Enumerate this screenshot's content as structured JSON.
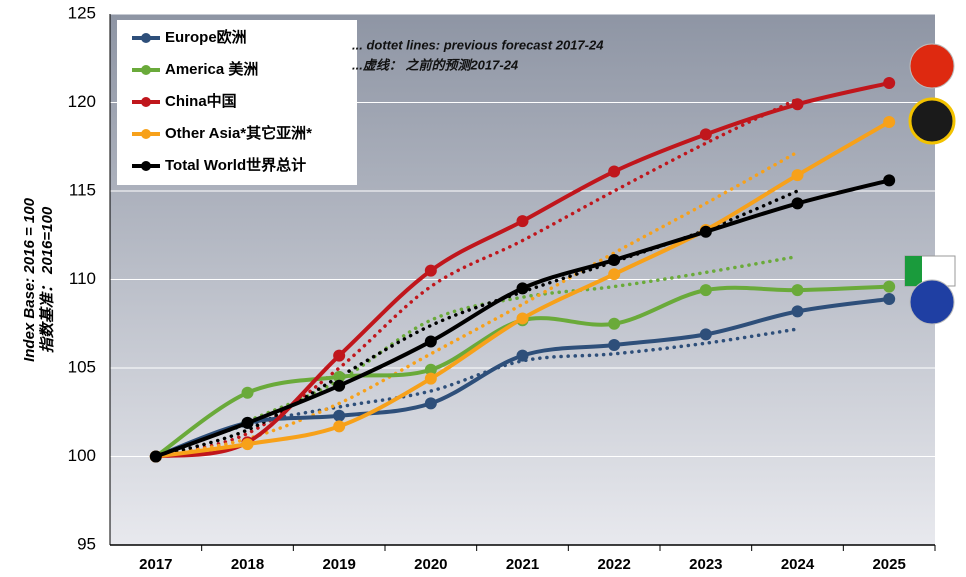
{
  "chart_data": {
    "type": "line",
    "y_label": [
      "Index Base: 2016 = 100",
      "指数基准： 2016=100"
    ],
    "annotations": [
      "... dottet lines: previous forecast 2017-24",
      "...虚线： 之前的预测2017-24"
    ],
    "categories": [
      "2017",
      "2018",
      "2019",
      "2020",
      "2021",
      "2022",
      "2023",
      "2024",
      "2025"
    ],
    "series": [
      {
        "name": "Europe欧洲",
        "color": "#2e4f7a",
        "values": [
          100,
          101.9,
          102.3,
          103.0,
          105.7,
          106.3,
          106.9,
          108.2,
          108.9
        ]
      },
      {
        "name": "America 美洲",
        "color": "#6aaa3a",
        "values": [
          100,
          103.6,
          104.5,
          104.9,
          107.7,
          107.5,
          109.4,
          109.4,
          109.6
        ]
      },
      {
        "name": "China中国",
        "color": "#c0161c",
        "values": [
          100,
          100.8,
          105.7,
          110.5,
          113.3,
          116.1,
          118.2,
          119.9,
          121.1
        ]
      },
      {
        "name": "Other Asia*其它亚洲*",
        "color": "#f7a11a",
        "values": [
          100,
          100.7,
          101.7,
          104.4,
          107.8,
          110.3,
          112.8,
          115.9,
          118.9
        ]
      },
      {
        "name": "Total World世界总计",
        "color": "#000000",
        "values": [
          100,
          101.9,
          104.0,
          106.5,
          109.5,
          111.1,
          112.7,
          114.3,
          115.6
        ]
      }
    ],
    "previous_forecast": [
      {
        "color": "#2e4f7a",
        "values": [
          100,
          101.8,
          102.8,
          103.7,
          105.4,
          105.8,
          106.4,
          107.2,
          null
        ]
      },
      {
        "color": "#6aaa3a",
        "values": [
          100,
          102.0,
          104.3,
          107.7,
          109.0,
          109.6,
          110.4,
          111.3,
          null
        ]
      },
      {
        "color": "#c0161c",
        "values": [
          100,
          101.3,
          105.0,
          109.6,
          112.2,
          115.0,
          117.7,
          120.2,
          null
        ]
      },
      {
        "color": "#f7a11a",
        "values": [
          100,
          101.0,
          103.0,
          105.8,
          108.6,
          111.5,
          114.3,
          117.2,
          null
        ]
      },
      {
        "color": "#000000",
        "values": [
          100,
          101.5,
          104.5,
          107.4,
          109.3,
          111.0,
          112.8,
          115.0,
          null
        ]
      }
    ],
    "ylim": [
      95,
      125
    ],
    "yticks": [
      95,
      100,
      105,
      110,
      115,
      120,
      125
    ],
    "grid": true
  }
}
